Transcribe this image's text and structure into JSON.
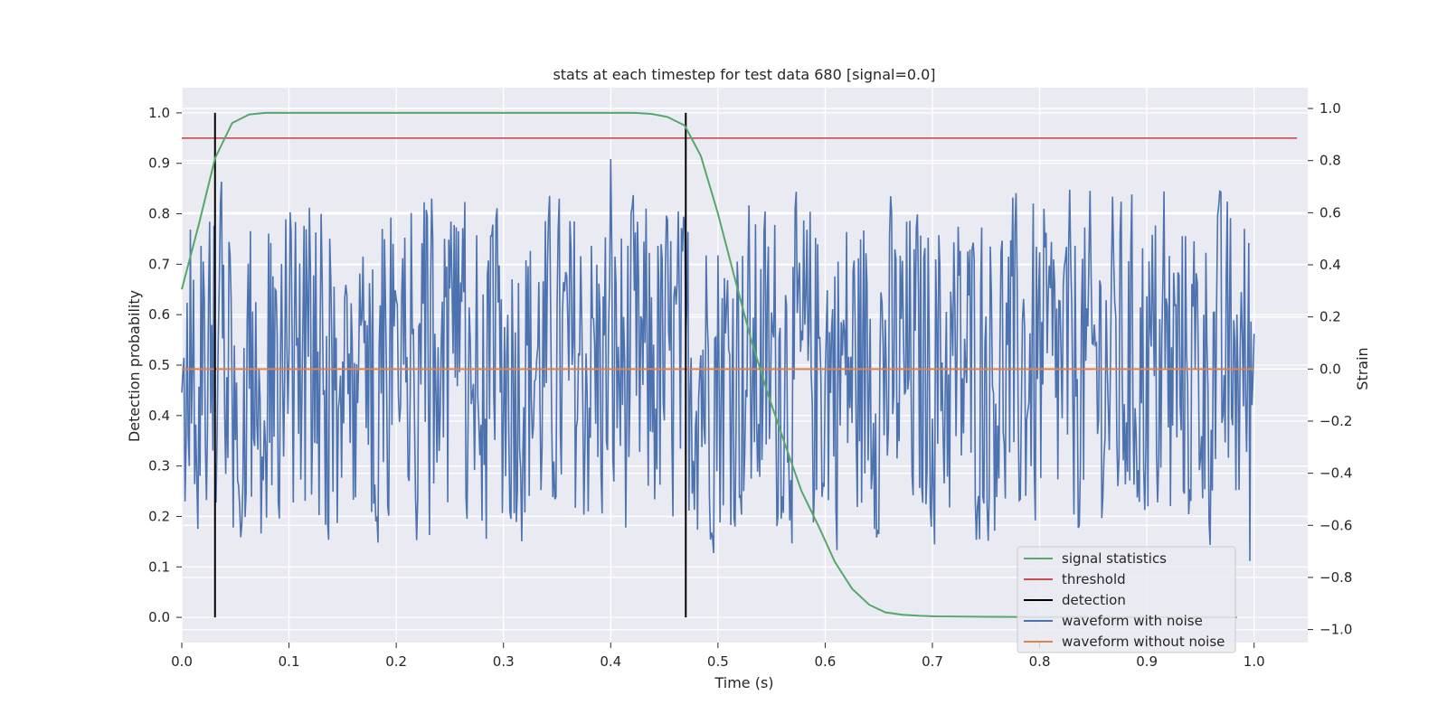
{
  "chart_data": {
    "type": "line",
    "title": "stats at each timestep for test data 680 [signal=0.0]",
    "xlabel": "Time (s)",
    "ylabel": "Detection probability",
    "y2label": "Strain",
    "xlim": [
      0.0,
      1.05
    ],
    "ylim": [
      -0.05,
      1.05
    ],
    "y2lim": [
      -1.05,
      1.08
    ],
    "xticks": [
      "0.0",
      "0.1",
      "0.2",
      "0.3",
      "0.4",
      "0.5",
      "0.6",
      "0.7",
      "0.8",
      "0.9",
      "1.0"
    ],
    "yticks": [
      "0.0",
      "0.1",
      "0.2",
      "0.3",
      "0.4",
      "0.5",
      "0.6",
      "0.7",
      "0.8",
      "0.9",
      "1.0"
    ],
    "y2ticks": [
      "−1.0",
      "−0.8",
      "−0.6",
      "−0.4",
      "−0.2",
      "0.0",
      "0.2",
      "0.4",
      "0.6",
      "0.8",
      "1.0"
    ],
    "grid": true,
    "legend_position": "bottom-right",
    "colors": {
      "signal_statistics": "#55a868",
      "threshold": "#c44e52",
      "detection": "#000000",
      "waveform_with_noise": "#4c72b0",
      "waveform_without_noise": "#dd8452",
      "plot_background": "#eaeaf2"
    },
    "series": [
      {
        "name": "signal statistics",
        "axis": "left",
        "x": [
          0.0,
          0.016,
          0.031,
          0.047,
          0.063,
          0.078,
          0.094,
          0.2,
          0.3,
          0.4,
          0.422,
          0.438,
          0.453,
          0.469,
          0.484,
          0.5,
          0.516,
          0.531,
          0.547,
          0.563,
          0.578,
          0.594,
          0.609,
          0.625,
          0.641,
          0.656,
          0.672,
          0.688,
          0.703,
          0.75,
          0.8,
          0.9,
          0.984
        ],
        "y": [
          0.65,
          0.78,
          0.91,
          0.98,
          0.997,
          1.0,
          1.0,
          1.0,
          1.0,
          1.0,
          1.0,
          0.998,
          0.992,
          0.975,
          0.915,
          0.8,
          0.67,
          0.55,
          0.44,
          0.34,
          0.25,
          0.18,
          0.11,
          0.057,
          0.025,
          0.01,
          0.005,
          0.003,
          0.002,
          0.001,
          0.0005,
          0.0002,
          0.0
        ]
      },
      {
        "name": "threshold",
        "axis": "left",
        "x": [
          0.0,
          1.04
        ],
        "y": [
          0.95,
          0.95
        ]
      },
      {
        "name": "detection",
        "axis": "left",
        "x": [
          0.031,
          0.47
        ],
        "y": [
          0.0,
          1.0
        ]
      },
      {
        "name": "waveform with noise",
        "axis": "right",
        "x_range": [
          0.0,
          1.0
        ],
        "amplitude": 1.0
      },
      {
        "name": "waveform without noise",
        "axis": "right",
        "x": [
          0.0,
          1.0
        ],
        "y": [
          0.0,
          0.0
        ]
      }
    ]
  }
}
